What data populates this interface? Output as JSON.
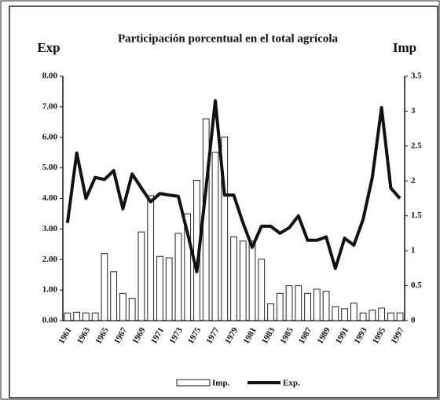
{
  "chart_data": {
    "type": "bar-line",
    "title": "Participación porcentual en el total agrícola",
    "ylabel": "Exp",
    "y2label": "Imp",
    "categories": [
      "1961",
      null,
      "1963",
      null,
      "1965",
      null,
      "1967",
      null,
      "1969",
      null,
      "1971",
      null,
      "1973",
      null,
      "1975",
      null,
      "1977",
      null,
      "1979",
      null,
      "1981",
      null,
      "1983",
      null,
      "1985",
      null,
      "1987",
      null,
      "1989",
      null,
      "1991",
      null,
      "1993",
      null,
      "1995",
      null,
      "1997"
    ],
    "series": [
      {
        "name": "Imp.",
        "type": "bar",
        "axis": "y2",
        "color": "#ffffff",
        "values": [
          0.11,
          0.12,
          0.11,
          0.11,
          0.96,
          0.7,
          0.39,
          0.32,
          1.27,
          1.79,
          0.92,
          0.9,
          1.25,
          1.53,
          2.01,
          2.89,
          2.41,
          2.63,
          1.2,
          1.14,
          1.14,
          0.88,
          0.24,
          0.39,
          0.5,
          0.5,
          0.39,
          0.45,
          0.42,
          0.2,
          0.17,
          0.25,
          0.11,
          0.15,
          0.18,
          0.11,
          0.11
        ]
      },
      {
        "name": "Exp.",
        "type": "line",
        "color": "#111111",
        "values": [
          3.2,
          5.49,
          4.0,
          4.69,
          4.62,
          4.91,
          3.66,
          4.8,
          4.34,
          3.89,
          4.16,
          4.11,
          4.07,
          2.86,
          1.6,
          4.34,
          7.2,
          4.11,
          4.11,
          3.2,
          2.4,
          3.09,
          3.09,
          2.86,
          3.04,
          3.43,
          2.63,
          2.63,
          2.74,
          1.71,
          2.7,
          2.47,
          3.31,
          4.69,
          6.97,
          4.34,
          4.0
        ]
      }
    ],
    "ylim": [
      0,
      8
    ],
    "yticks": [
      {
        "value": 0,
        "label": "0.00"
      },
      {
        "value": 1,
        "label": "1.00"
      },
      {
        "value": 2,
        "label": "2.00"
      },
      {
        "value": 3,
        "label": "3.00"
      },
      {
        "value": 4,
        "label": "4.00"
      },
      {
        "value": 5,
        "label": "5.00"
      },
      {
        "value": 6,
        "label": "6.00"
      },
      {
        "value": 7,
        "label": "7.00"
      },
      {
        "value": 8,
        "label": "8.00"
      }
    ],
    "y2lim": [
      0,
      3.5
    ],
    "y2ticks": [
      0,
      0.5,
      1,
      1.5,
      2,
      2.5,
      3,
      3.5
    ],
    "legend": "bottom"
  }
}
